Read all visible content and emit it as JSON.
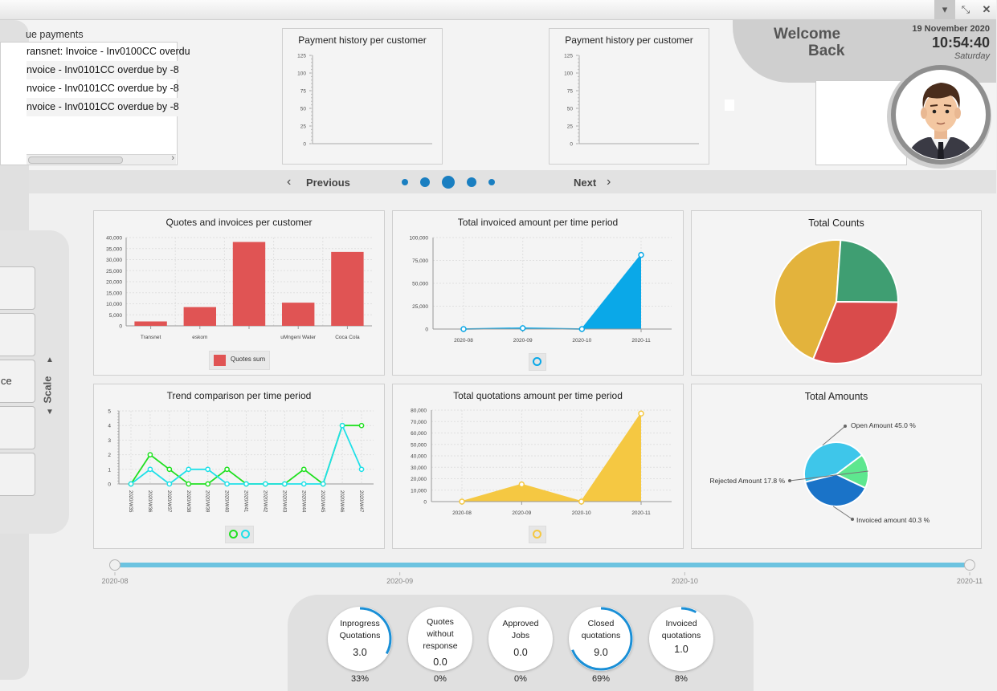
{
  "window": {
    "minimize_icon": "chevron-down-icon",
    "restore_icon": "compress-icon",
    "close_icon": "close-icon"
  },
  "overdue": {
    "title": "ue payments",
    "rows": [
      "ransnet: Invoice - Inv0100CC overdu",
      "nvoice - Inv0101CC overdue by -8",
      "nvoice - Inv0101CC overdue by -8",
      "nvoice - Inv0101CC overdue by -8"
    ]
  },
  "carousel": {
    "charts": [
      {
        "title": "Payment history per customer",
        "ticks": [
          "125",
          "100",
          "75",
          "50",
          "25",
          "0"
        ]
      },
      {
        "title": "Payment history per customer",
        "ticks": [
          "125",
          "100",
          "75",
          "50",
          "25",
          "0"
        ]
      }
    ],
    "previous_label": "Previous",
    "next_label": "Next"
  },
  "welcome": {
    "line1": "Welcome",
    "line2": "Back",
    "date": "19 November 2020",
    "time": "10:54:40",
    "day": "Saturday"
  },
  "sidebar": {
    "scale_label": "Scale",
    "partial_label": "ce"
  },
  "charts": {
    "quotes_invoices": {
      "title": "Quotes and invoices per customer",
      "legend": "Quotes sum",
      "yticks": [
        "40,000",
        "35,000",
        "30,000",
        "25,000",
        "20,000",
        "15,000",
        "10,000",
        "5,000",
        "0"
      ]
    },
    "total_invoiced": {
      "title": "Total invoiced amount per time period",
      "yticks": [
        "100,000",
        "75,000",
        "50,000",
        "25,000",
        "0"
      ]
    },
    "total_counts": {
      "title": "Total Counts"
    },
    "trend": {
      "title": "Trend comparison per time period",
      "yticks": [
        "5",
        "4",
        "3",
        "2",
        "1",
        "0"
      ]
    },
    "total_quotations": {
      "title": "Total quotations amount per time period",
      "yticks": [
        "80,000",
        "70,000",
        "60,000",
        "50,000",
        "40,000",
        "30,000",
        "20,000",
        "10,000",
        "0"
      ]
    },
    "total_amounts": {
      "title": "Total Amounts"
    }
  },
  "chart_data": [
    {
      "type": "bar",
      "title": "Quotes and invoices per customer",
      "categories": [
        "Transnet",
        "eskom",
        "",
        "uMngeni Water",
        "Coca Cola"
      ],
      "series": [
        {
          "name": "Quotes sum",
          "values": [
            2000,
            8500,
            38000,
            10500,
            33500
          ]
        }
      ],
      "ylim": [
        0,
        40000
      ],
      "color": "#e05454"
    },
    {
      "type": "area",
      "title": "Total invoiced amount per time period",
      "x": [
        "2020-08",
        "2020-09",
        "2020-10",
        "2020-11"
      ],
      "values": [
        0,
        1000,
        0,
        81000
      ],
      "ylim": [
        0,
        100000
      ],
      "color": "#0aa8e8"
    },
    {
      "type": "pie",
      "title": "Total Counts",
      "values": [
        45,
        24,
        31
      ],
      "colors": [
        "#e3b33c",
        "#3f9e72",
        "#d94b4b"
      ]
    },
    {
      "type": "line",
      "title": "Trend comparison per time period",
      "x": [
        "2020/W35",
        "2020/W36",
        "2020/W37",
        "2020/W38",
        "2020/W39",
        "2020/W40",
        "2020/W41",
        "2020/W42",
        "2020/W43",
        "2020/W44",
        "2020/W45",
        "2020/W46",
        "2020/W47"
      ],
      "series": [
        {
          "values": [
            0,
            2,
            1,
            0,
            0,
            1,
            0,
            0,
            0,
            1,
            0,
            4,
            4
          ],
          "color": "#22e022"
        },
        {
          "values": [
            0,
            1,
            0,
            1,
            1,
            0,
            0,
            0,
            0,
            0,
            0,
            4,
            1
          ],
          "color": "#20e0e8"
        }
      ],
      "ylim": [
        0,
        5
      ]
    },
    {
      "type": "area",
      "title": "Total quotations amount per time period",
      "x": [
        "2020-08",
        "2020-09",
        "2020-10",
        "2020-11"
      ],
      "values": [
        0,
        15000,
        0,
        77000
      ],
      "ylim": [
        0,
        80000
      ],
      "color": "#f5c842"
    },
    {
      "type": "pie",
      "title": "Total Amounts",
      "labels": [
        "Open Amount 45.0 %",
        "Rejected Amount 17.8 %",
        "Invoiced amount 40.3 %"
      ],
      "values": [
        45.0,
        17.8,
        40.3
      ],
      "colors": [
        "#3ec6ea",
        "#5ee78f",
        "#1a73c8"
      ]
    }
  ],
  "timeline": {
    "labels": [
      "2020-08",
      "2020-09",
      "2020-10",
      "2020-11"
    ],
    "color": "#6cc3e0"
  },
  "gauges": [
    {
      "label": "Inprogress Quotations",
      "value": "3.0",
      "pct": "33%",
      "fraction": 0.33
    },
    {
      "label": "Quotes without response",
      "value": "0.0",
      "pct": "0%",
      "fraction": 0
    },
    {
      "label": "Approved Jobs",
      "value": "0.0",
      "pct": "0%",
      "fraction": 0
    },
    {
      "label": "Closed quotations",
      "value": "9.0",
      "pct": "69%",
      "fraction": 0.69
    },
    {
      "label": "Invoiced quotations",
      "value": "1.0",
      "pct": "8%",
      "fraction": 0.08
    }
  ]
}
